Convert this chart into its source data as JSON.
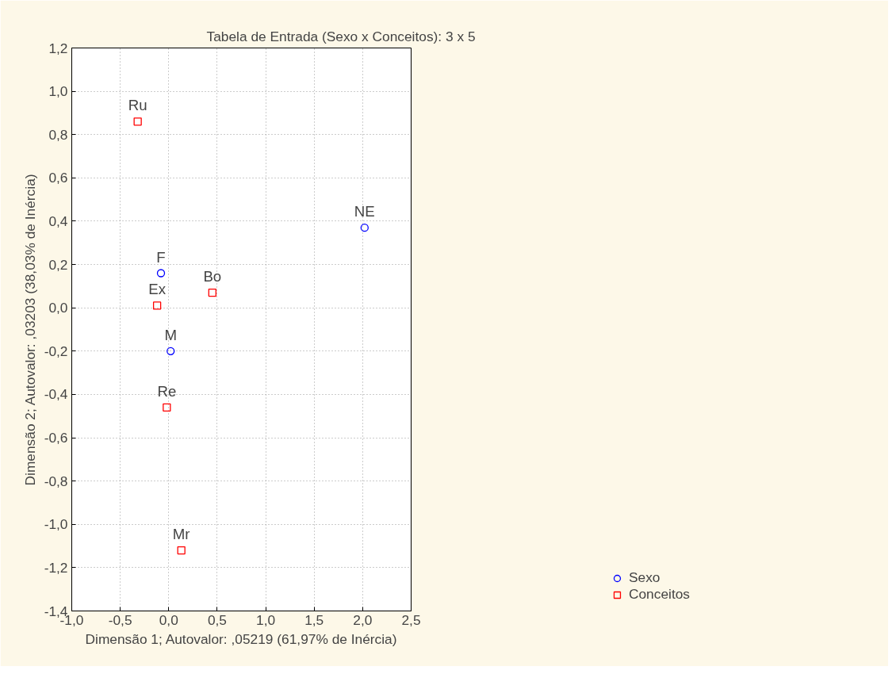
{
  "chart_data": {
    "type": "scatter",
    "title": "Tabela de Entrada (Sexo x Conceitos): 3 x 5",
    "xlabel": "Dimensão 1; Autovalor: ,05219 (61,97% de Inércia)",
    "ylabel": "Dimensão 2; Autovalor: ,03203 (38,03% de Inércia)",
    "series": [
      {
        "name": "Sexo",
        "color": "#0000ff",
        "marker": "circle",
        "x": [
          -0.08,
          0.02,
          2.02
        ],
        "values": [
          0.16,
          -0.2,
          0.37
        ]
      },
      {
        "name": "Conceitos",
        "color": "#ff0000",
        "marker": "square",
        "x": [
          -0.32,
          -0.12,
          0.45,
          -0.02,
          0.13
        ],
        "values": [
          0.86,
          0.01,
          0.07,
          -0.46,
          -1.12
        ]
      }
    ],
    "annotations": [
      {
        "text": "F",
        "x": -0.08,
        "y": 0.16
      },
      {
        "text": "M",
        "x": 0.02,
        "y": -0.2
      },
      {
        "text": "NE",
        "x": 2.02,
        "y": 0.37
      },
      {
        "text": "Ru",
        "x": -0.32,
        "y": 0.86
      },
      {
        "text": "Ex",
        "x": -0.12,
        "y": 0.01
      },
      {
        "text": "Bo",
        "x": 0.45,
        "y": 0.07
      },
      {
        "text": "Re",
        "x": -0.02,
        "y": -0.46
      },
      {
        "text": "Mr",
        "x": 0.13,
        "y": -1.12
      }
    ],
    "xlim": [
      -1.0,
      2.5
    ],
    "xticks": [
      {
        "value": -1.0,
        "label": "-1,0"
      },
      {
        "value": -0.5,
        "label": "-0,5"
      },
      {
        "value": 0.0,
        "label": "0,0"
      },
      {
        "value": 0.5,
        "label": "0,5"
      },
      {
        "value": 1.0,
        "label": "1,0"
      },
      {
        "value": 1.5,
        "label": "1,5"
      },
      {
        "value": 2.0,
        "label": "2,0"
      },
      {
        "value": 2.5,
        "label": "2,5"
      }
    ],
    "ylim": [
      -1.4,
      1.2
    ],
    "yticks": [
      {
        "value": -1.4,
        "label": "-1,4"
      },
      {
        "value": -1.2,
        "label": "-1,2"
      },
      {
        "value": -1.0,
        "label": "-1,0"
      },
      {
        "value": -0.8,
        "label": "-0,8"
      },
      {
        "value": -0.6,
        "label": "-0,6"
      },
      {
        "value": -0.4,
        "label": "-0,4"
      },
      {
        "value": -0.2,
        "label": "-0,2"
      },
      {
        "value": 0.0,
        "label": "0,0"
      },
      {
        "value": 0.2,
        "label": "0,2"
      },
      {
        "value": 0.4,
        "label": "0,4"
      },
      {
        "value": 0.6,
        "label": "0,6"
      },
      {
        "value": 0.8,
        "label": "0,8"
      },
      {
        "value": 1.0,
        "label": "1,0"
      },
      {
        "value": 1.2,
        "label": "1,2"
      }
    ],
    "grid": true,
    "legend": "bottom right"
  }
}
